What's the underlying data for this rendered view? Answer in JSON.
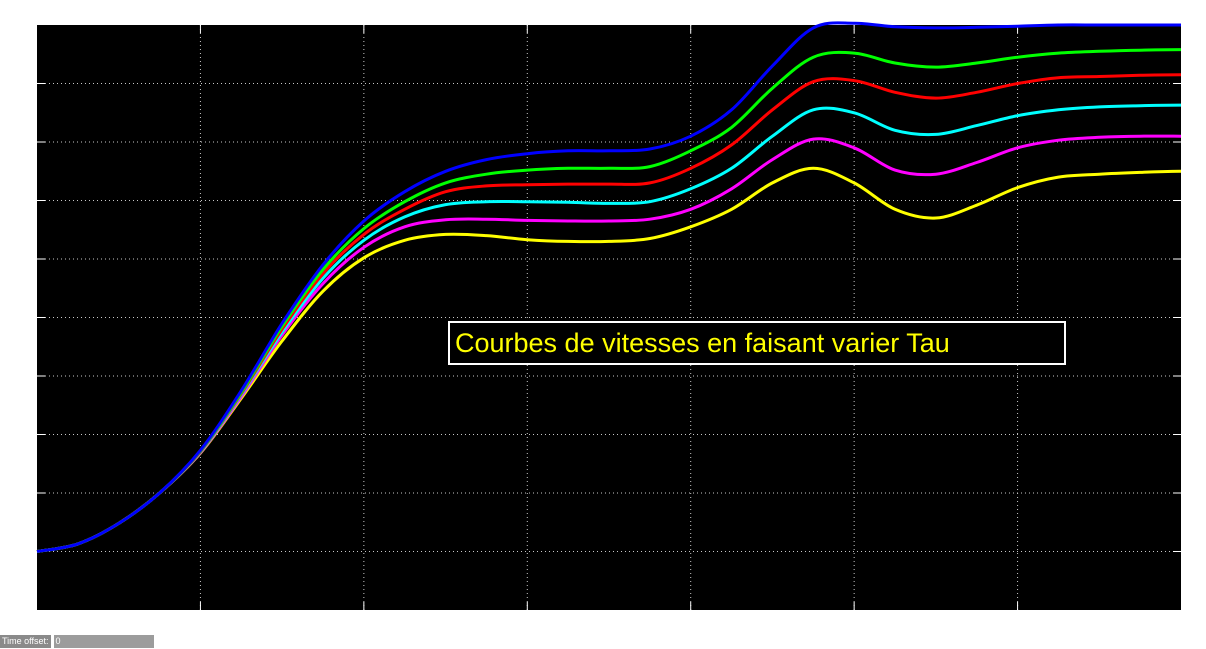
{
  "window": {
    "background": "#ffffff",
    "plot_background": "#000000",
    "grid_color": "#c8c8c8"
  },
  "chart_data": {
    "type": "line",
    "title": "",
    "xlabel": "",
    "ylabel": "",
    "xlim": [
      0,
      7
    ],
    "ylim": [
      0,
      10
    ],
    "grid": true,
    "x_ticks": [
      0,
      1,
      2,
      3,
      4,
      5,
      6,
      7
    ],
    "y_ticks": [
      0,
      1,
      2,
      3,
      4,
      5,
      6,
      7,
      8,
      9,
      10
    ],
    "x": [
      0,
      0.25,
      0.5,
      0.75,
      1,
      1.25,
      1.5,
      1.75,
      2,
      2.25,
      2.5,
      2.75,
      3,
      3.25,
      3.5,
      3.75,
      4,
      4.25,
      4.5,
      4.75,
      5,
      5.25,
      5.5,
      5.75,
      6,
      6.25,
      6.5,
      6.75,
      7
    ],
    "series": [
      {
        "color": "#0000ff",
        "values": [
          1.0,
          1.13,
          1.48,
          2.0,
          2.73,
          3.75,
          4.9,
          5.9,
          6.65,
          7.15,
          7.5,
          7.7,
          7.8,
          7.85,
          7.85,
          7.88,
          8.1,
          8.55,
          9.3,
          9.95,
          10.03,
          9.97,
          9.95,
          9.96,
          9.98,
          10.0,
          10.0,
          10.0,
          10.0
        ]
      },
      {
        "color": "#00ff00",
        "values": [
          1.0,
          1.13,
          1.48,
          2.0,
          2.72,
          3.72,
          4.85,
          5.82,
          6.52,
          6.98,
          7.3,
          7.45,
          7.52,
          7.55,
          7.55,
          7.58,
          7.85,
          8.25,
          8.92,
          9.45,
          9.52,
          9.35,
          9.28,
          9.35,
          9.45,
          9.52,
          9.55,
          9.57,
          9.58
        ]
      },
      {
        "color": "#ff0000",
        "values": [
          1.0,
          1.13,
          1.48,
          2.0,
          2.71,
          3.7,
          4.8,
          5.75,
          6.42,
          6.85,
          7.15,
          7.25,
          7.27,
          7.28,
          7.28,
          7.3,
          7.55,
          7.95,
          8.55,
          9.03,
          9.05,
          8.85,
          8.75,
          8.85,
          9.0,
          9.1,
          9.12,
          9.14,
          9.15
        ]
      },
      {
        "color": "#00ffff",
        "values": [
          1.0,
          1.13,
          1.48,
          2.0,
          2.7,
          3.68,
          4.75,
          5.67,
          6.32,
          6.72,
          6.93,
          6.98,
          6.98,
          6.97,
          6.95,
          6.98,
          7.2,
          7.55,
          8.1,
          8.55,
          8.5,
          8.2,
          8.13,
          8.28,
          8.45,
          8.55,
          8.6,
          8.62,
          8.63
        ]
      },
      {
        "color": "#ff00ff",
        "values": [
          1.0,
          1.13,
          1.48,
          2.0,
          2.69,
          3.65,
          4.7,
          5.58,
          6.2,
          6.55,
          6.67,
          6.68,
          6.66,
          6.65,
          6.65,
          6.68,
          6.85,
          7.2,
          7.7,
          8.05,
          7.9,
          7.52,
          7.45,
          7.65,
          7.9,
          8.03,
          8.08,
          8.1,
          8.1
        ]
      },
      {
        "color": "#ffff00",
        "values": [
          1.0,
          1.13,
          1.48,
          2.0,
          2.68,
          3.62,
          4.6,
          5.45,
          6.02,
          6.32,
          6.42,
          6.4,
          6.33,
          6.3,
          6.3,
          6.35,
          6.55,
          6.85,
          7.3,
          7.55,
          7.3,
          6.85,
          6.7,
          6.92,
          7.22,
          7.4,
          7.45,
          7.48,
          7.5
        ]
      }
    ]
  },
  "annotation": {
    "text": "Courbes de vitesses en faisant varier Tau"
  },
  "status_bar": {
    "time_offset_label": "Time offset:",
    "time_offset_value": "0"
  }
}
